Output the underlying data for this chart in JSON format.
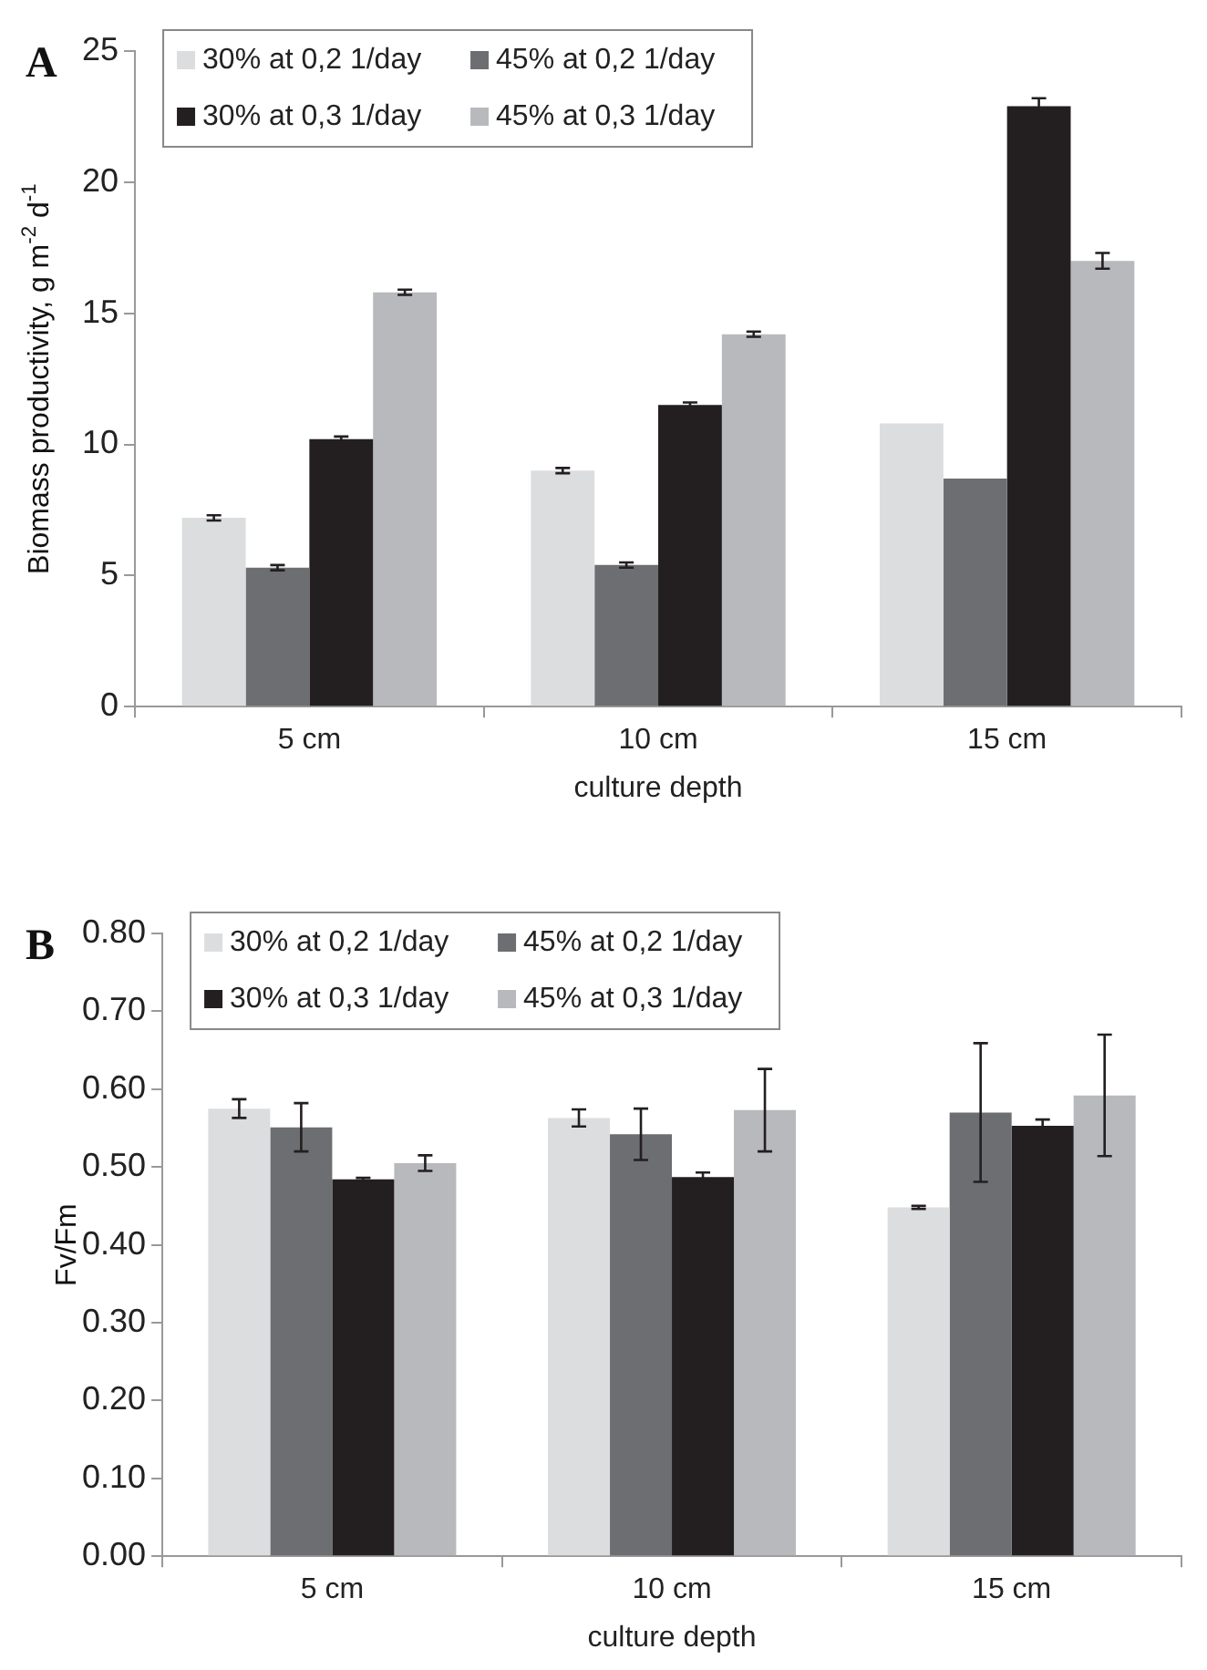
{
  "chart_data": [
    {
      "type": "bar",
      "title": "A",
      "xlabel": "culture depth",
      "ylabel": "Biomass productivity, g m$^{-2}$ d$^{-1}$",
      "categories": [
        "5 cm",
        "10 cm",
        "15 cm"
      ],
      "series": [
        {
          "name": "30% at 0,2 1/day",
          "color": "#dcdddf",
          "values": [
            7.2,
            9.0,
            10.8
          ],
          "errors": [
            0.1,
            0.1,
            null
          ]
        },
        {
          "name": "45% at 0,2 1/day",
          "color": "#6d6e71",
          "values": [
            5.3,
            5.4,
            8.7
          ],
          "errors": [
            0.1,
            0.1,
            null
          ]
        },
        {
          "name": "30% at 0,3 1/day",
          "color": "#231f20",
          "values": [
            10.2,
            11.5,
            22.9
          ],
          "errors": [
            0.1,
            0.1,
            0.3
          ]
        },
        {
          "name": "45% at 0,3 1/day",
          "color": "#b8b9bd",
          "values": [
            15.8,
            14.2,
            17.0
          ],
          "errors": [
            0.1,
            0.1,
            0.3
          ]
        }
      ],
      "ylim": [
        0,
        25
      ],
      "yticks": [
        0,
        5,
        10,
        15,
        20,
        25
      ],
      "grid": false,
      "legend": "top left"
    },
    {
      "type": "bar",
      "title": "B",
      "xlabel": "culture depth",
      "ylabel": "Fv/Fm",
      "categories": [
        "5 cm",
        "10 cm",
        "15 cm"
      ],
      "series": [
        {
          "name": "30% at 0,2 1/day",
          "color": "#dcdddf",
          "values": [
            0.575,
            0.563,
            0.448
          ],
          "errors": [
            0.012,
            0.011,
            0.002
          ]
        },
        {
          "name": "45% at 0,2 1/day",
          "color": "#6d6e71",
          "values": [
            0.551,
            0.542,
            0.57
          ],
          "errors": [
            0.031,
            0.033,
            0.089
          ]
        },
        {
          "name": "30% at 0,3 1/day",
          "color": "#231f20",
          "values": [
            0.484,
            0.487,
            0.553
          ],
          "errors": [
            0.002,
            0.006,
            0.008
          ]
        },
        {
          "name": "45% at 0,3 1/day",
          "color": "#b8b9bd",
          "values": [
            0.505,
            0.573,
            0.592
          ],
          "errors": [
            0.01,
            0.053,
            0.078
          ]
        }
      ],
      "ylim": [
        0,
        0.8
      ],
      "yticks": [
        {
          "value": 0,
          "label": "0.00"
        },
        {
          "value": 0.1,
          "label": "0.10"
        },
        {
          "value": 0.2,
          "label": "0.20"
        },
        {
          "value": 0.3,
          "label": "0.30"
        },
        {
          "value": 0.4,
          "label": "0.40"
        },
        {
          "value": 0.5,
          "label": "0.50"
        },
        {
          "value": 0.6,
          "label": "0.60"
        },
        {
          "value": 0.7,
          "label": "0.70"
        },
        {
          "value": 0.8,
          "label": "0.80"
        }
      ],
      "grid": false,
      "legend": "top left"
    }
  ]
}
